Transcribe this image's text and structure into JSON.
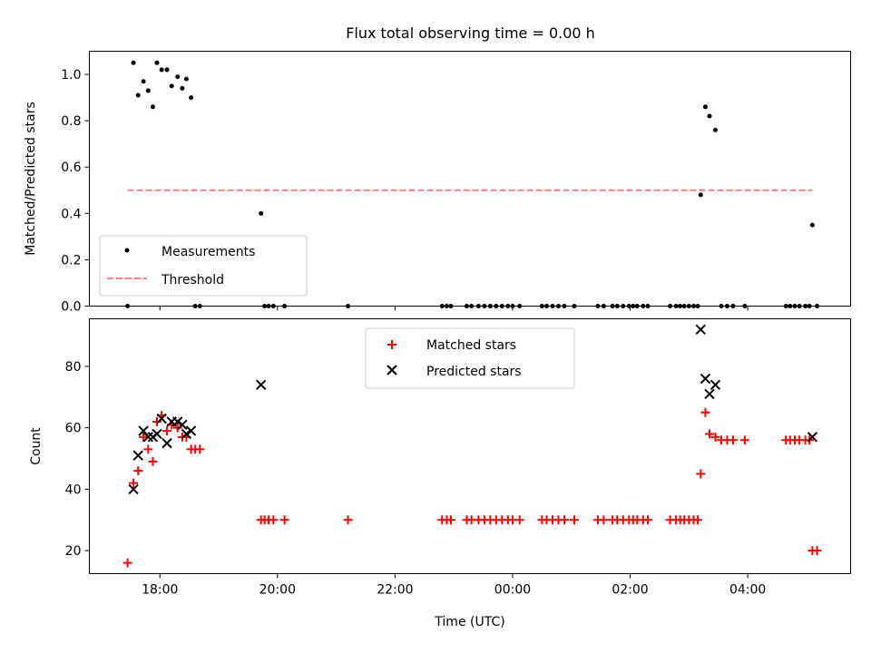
{
  "chart_data": [
    {
      "type": "scatter",
      "title": "Flux total observing time = 0.00 h",
      "xlabel": "",
      "ylabel": "Matched/Predicted stars",
      "ylim": [
        0,
        1.1
      ],
      "xlim": [
        16.8,
        29.75
      ],
      "yticks": [
        0.0,
        0.2,
        0.4,
        0.6,
        0.8,
        1.0
      ],
      "ytick_labels": [
        "0.0",
        "0.2",
        "0.4",
        "0.6",
        "0.8",
        "1.0"
      ],
      "legend_position": "lower-left",
      "series": [
        {
          "name": "Measurements",
          "marker": "dot",
          "color": "#000000",
          "x": [
            17.55,
            17.63,
            17.72,
            17.8,
            17.88,
            17.95,
            18.03,
            18.12,
            18.2,
            18.3,
            18.38,
            18.45,
            18.53,
            17.45,
            18.6,
            18.68,
            19.72,
            19.78,
            19.85,
            19.93,
            20.12,
            21.2,
            22.8,
            22.88,
            22.95,
            23.22,
            23.3,
            23.42,
            23.52,
            23.62,
            23.72,
            23.82,
            23.92,
            24.0,
            24.12,
            24.5,
            24.58,
            24.68,
            24.78,
            24.88,
            25.05,
            25.45,
            25.55,
            25.7,
            25.78,
            25.88,
            25.98,
            26.05,
            26.12,
            26.22,
            26.3,
            26.68,
            26.78,
            26.85,
            26.92,
            27.0,
            27.08,
            27.15,
            27.2,
            27.28,
            27.35,
            27.45,
            27.55,
            27.65,
            27.75,
            27.95,
            28.65,
            28.72,
            28.8,
            28.88,
            28.98,
            29.05,
            29.1,
            29.18
          ],
          "y": [
            1.05,
            0.91,
            0.97,
            0.93,
            0.86,
            1.05,
            1.02,
            1.02,
            0.95,
            0.99,
            0.94,
            0.98,
            0.9,
            0.0,
            0.0,
            0.0,
            0.4,
            0.0,
            0.0,
            0.0,
            0.0,
            0.0,
            0.0,
            0.0,
            0.0,
            0.0,
            0.0,
            0.0,
            0.0,
            0.0,
            0.0,
            0.0,
            0.0,
            0.0,
            0.0,
            0.0,
            0.0,
            0.0,
            0.0,
            0.0,
            0.0,
            0.0,
            0.0,
            0.0,
            0.0,
            0.0,
            0.0,
            0.0,
            0.0,
            0.0,
            0.0,
            0.0,
            0.0,
            0.0,
            0.0,
            0.0,
            0.0,
            0.0,
            0.48,
            0.86,
            0.82,
            0.76,
            0.0,
            0.0,
            0.0,
            0.0,
            0.0,
            0.0,
            0.0,
            0.0,
            0.0,
            0.0,
            0.35,
            0.0
          ]
        },
        {
          "name": "Threshold",
          "style": "dashed",
          "color": "#ff7f7f",
          "x": [
            17.45,
            29.1
          ],
          "y": [
            0.5,
            0.5
          ]
        }
      ]
    },
    {
      "type": "scatter",
      "title": "",
      "xlabel": "Time (UTC)",
      "ylabel": "Count",
      "xlim": [
        16.8,
        29.75
      ],
      "ylim": [
        12.5,
        95.5
      ],
      "yticks": [
        20,
        40,
        60,
        80
      ],
      "ytick_labels": [
        "20",
        "40",
        "60",
        "80"
      ],
      "xticks": [
        18,
        20,
        22,
        24,
        26,
        28
      ],
      "xtick_labels": [
        "18:00",
        "20:00",
        "22:00",
        "00:00",
        "02:00",
        "04:00"
      ],
      "legend_position": "top-center",
      "series": [
        {
          "name": "Matched stars",
          "marker": "plus",
          "color": "#ff0000",
          "x": [
            17.45,
            17.55,
            17.63,
            17.72,
            17.8,
            17.88,
            17.95,
            18.03,
            18.12,
            18.2,
            18.3,
            18.38,
            18.45,
            18.53,
            18.6,
            18.68,
            19.72,
            19.78,
            19.85,
            19.93,
            20.12,
            21.2,
            22.8,
            22.88,
            22.95,
            23.22,
            23.3,
            23.42,
            23.52,
            23.62,
            23.72,
            23.82,
            23.92,
            24.0,
            24.12,
            24.5,
            24.58,
            24.68,
            24.78,
            24.88,
            25.05,
            25.45,
            25.55,
            25.7,
            25.78,
            25.88,
            25.98,
            26.05,
            26.12,
            26.22,
            26.3,
            26.68,
            26.78,
            26.85,
            26.92,
            27.0,
            27.08,
            27.15,
            27.2,
            27.28,
            27.35,
            27.45,
            27.55,
            27.65,
            27.75,
            27.95,
            28.65,
            28.72,
            28.8,
            28.88,
            28.98,
            29.05,
            29.1,
            29.18
          ],
          "y": [
            16,
            42,
            46,
            57,
            53,
            49,
            62,
            64,
            59,
            61,
            60,
            57,
            57,
            53,
            53,
            53,
            30,
            30,
            30,
            30,
            30,
            30,
            30,
            30,
            30,
            30,
            30,
            30,
            30,
            30,
            30,
            30,
            30,
            30,
            30,
            30,
            30,
            30,
            30,
            30,
            30,
            30,
            30,
            30,
            30,
            30,
            30,
            30,
            30,
            30,
            30,
            30,
            30,
            30,
            30,
            30,
            30,
            30,
            45,
            65,
            58,
            57,
            56,
            56,
            56,
            56,
            56,
            56,
            56,
            56,
            56,
            56,
            20,
            20
          ]
        },
        {
          "name": "Predicted stars",
          "marker": "x",
          "color": "#000000",
          "x": [
            17.55,
            17.63,
            17.72,
            17.8,
            17.88,
            17.95,
            18.03,
            18.12,
            18.2,
            18.3,
            18.38,
            18.45,
            18.53,
            19.72,
            27.2,
            27.28,
            27.35,
            27.45,
            29.1
          ],
          "y": [
            40,
            51,
            59,
            57,
            57,
            58,
            63,
            55,
            62,
            62,
            61,
            58,
            59,
            74,
            92,
            76,
            71,
            74,
            57
          ]
        }
      ]
    }
  ]
}
